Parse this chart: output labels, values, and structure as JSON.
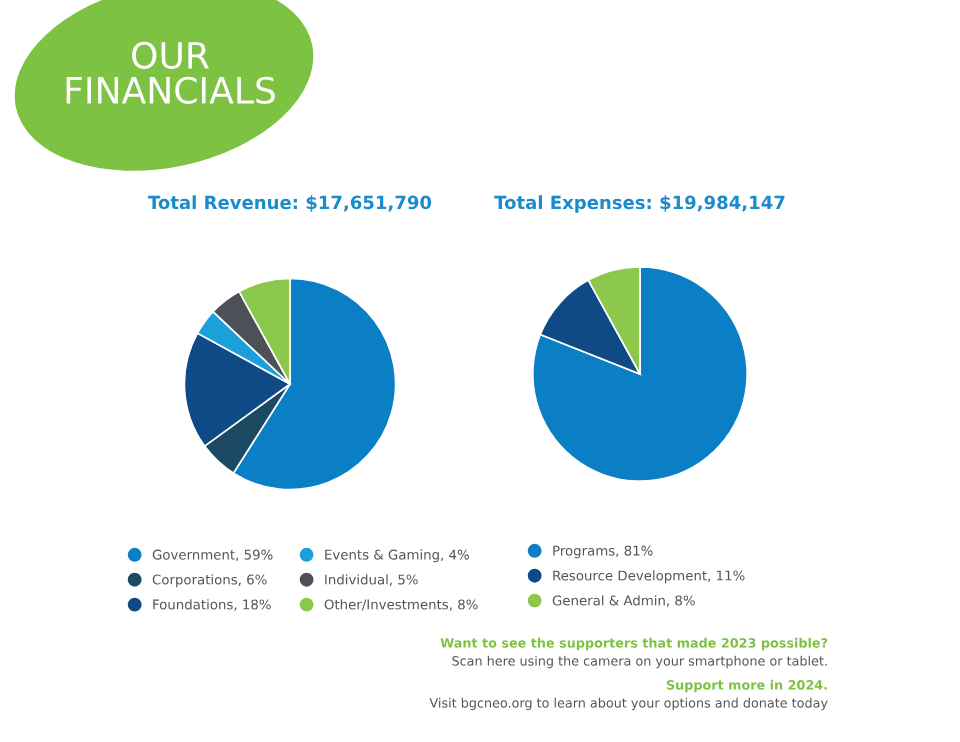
{
  "chart_data": [
    {
      "type": "other",
      "title": "OUR\nFINANCIALS",
      "annotations": [
        "Want to see the supporters that made 2023 possible?",
        "Scan here using the camera on your smartphone or tablet.",
        "Support more in 2024.",
        "Visit bgcneo.org to learn about your options and donate today"
      ]
    },
    {
      "type": "pie",
      "title": "Total Revenue: $17,651,790",
      "legend": "bottom",
      "categories": [
        "Government, 59%",
        "Corporations, 6%",
        "Foundations, 18%",
        "Events & Gaming, 4%",
        "Individual, 5%",
        "Other/Investments, 8%"
      ],
      "values": [
        59,
        6,
        18,
        4,
        5,
        8
      ],
      "colors": [
        "#0a7fc6",
        "#1d4a63",
        "#0f4a86",
        "#1ba0dc",
        "#4d5157",
        "#8cc84b"
      ]
    },
    {
      "type": "pie",
      "title": "Total Expenses: $19,984,147",
      "legend": "bottom",
      "categories": [
        "Programs, 81%",
        "Resource Development, 11%",
        "General & Admin, 8%"
      ],
      "values": [
        81,
        11,
        8
      ],
      "colors": [
        "#0a7fc6",
        "#0f4a86",
        "#8cc84b"
      ]
    }
  ]
}
